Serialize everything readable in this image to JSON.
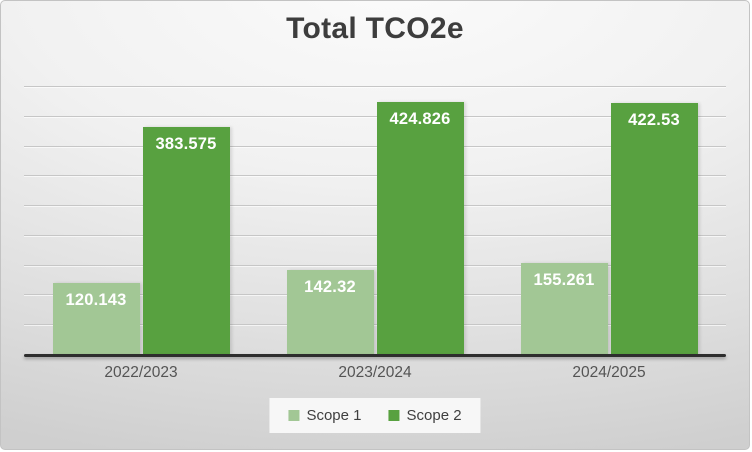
{
  "chart_data": {
    "type": "bar",
    "title": "Total TCO2e",
    "categories": [
      "2022/2023",
      "2023/2024",
      "2024/2025"
    ],
    "series": [
      {
        "name": "Scope 1",
        "color": "#a2c795",
        "values": [
          120.143,
          142.32,
          155.261
        ]
      },
      {
        "name": "Scope 2",
        "color": "#58a140",
        "values": [
          383.575,
          424.826,
          422.53
        ]
      }
    ],
    "ylim": [
      0,
      450
    ],
    "grid_step": 50,
    "grid": "on",
    "y_tick_labels_visible": false,
    "value_labels_position": "inside-top",
    "value_label_color": "#ffffff",
    "legend_position": "bottom",
    "xlabel": "",
    "ylabel": ""
  }
}
